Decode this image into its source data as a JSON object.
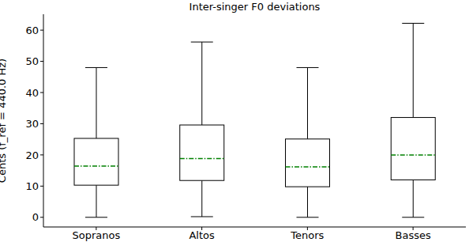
{
  "chart_data": {
    "type": "box",
    "title": "Inter-singer F0 deviations",
    "y_label": "Cents (f_ref = 440.0 Hz)",
    "categories": [
      "Sopranos",
      "Altos",
      "Tenors",
      "Basses"
    ],
    "min": [
      0,
      0.2,
      0,
      0
    ],
    "q1": [
      10.3,
      11.8,
      9.8,
      12.0
    ],
    "median": [
      16.4,
      18.8,
      16.2,
      20.0
    ],
    "q3": [
      25.3,
      29.6,
      25.1,
      32.0
    ],
    "max": [
      48.0,
      56.2,
      48.0,
      62.2
    ],
    "color": "#000000",
    "median_color": "#008000",
    "ylim": [
      -3.1,
      65.1
    ],
    "yticks": [
      0,
      10,
      20,
      30,
      40,
      50,
      60
    ],
    "grid": false
  }
}
